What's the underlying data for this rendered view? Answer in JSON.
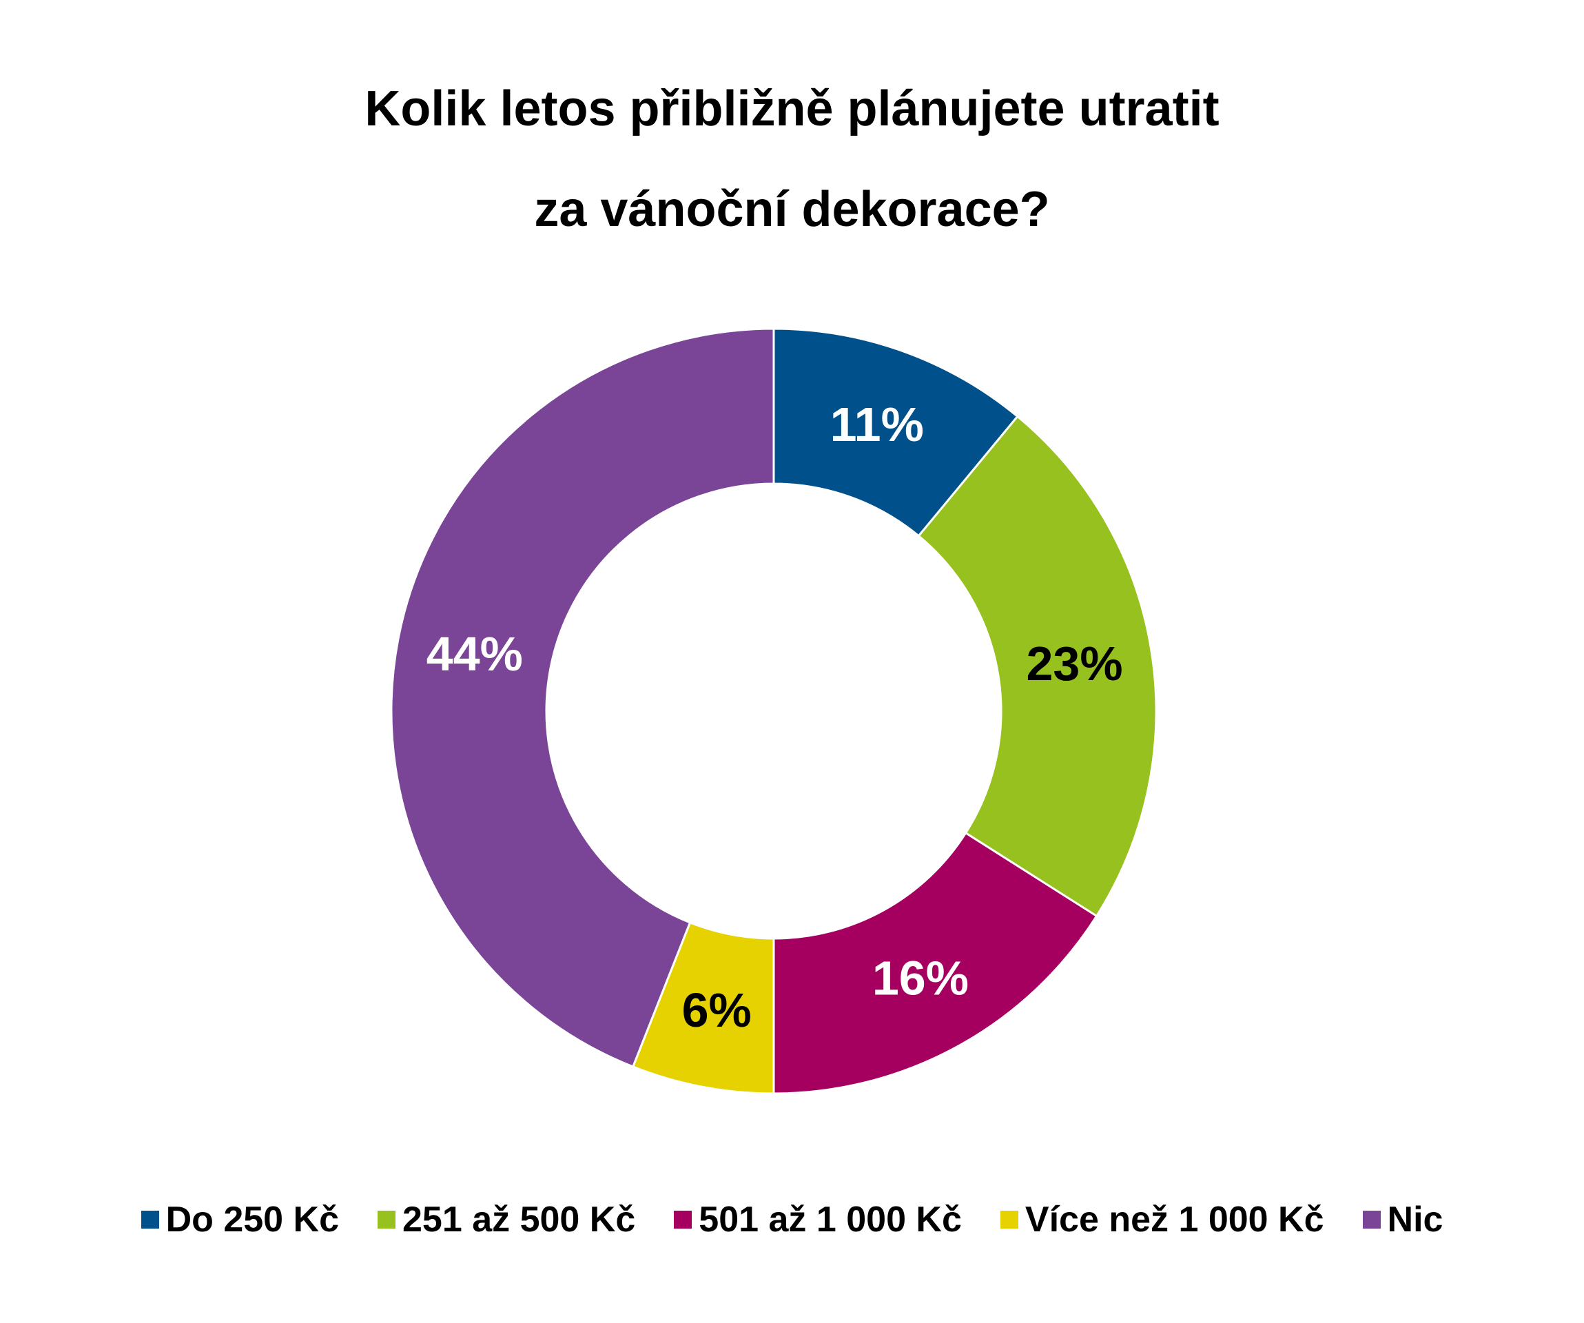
{
  "chart_data": {
    "type": "pie",
    "subtype": "donut",
    "title": [
      "Kolik letos přibližně plánujete utratit",
      "za vánoční dekorace?"
    ],
    "categories": [
      "Do 250 Kč",
      "251 až 500 Kč",
      "501 až 1 000 Kč",
      "Více než 1 000 Kč",
      "Nic"
    ],
    "values": [
      11,
      23,
      16,
      6,
      44
    ],
    "data_labels": [
      "11%",
      "23%",
      "16%",
      "6%",
      "44%"
    ],
    "colors": [
      "#00508C",
      "#97C11F",
      "#A5005F",
      "#E6D200",
      "#7A4497"
    ],
    "label_colors": [
      "#ffffff",
      "#000000",
      "#ffffff",
      "#000000",
      "#ffffff"
    ],
    "legend_position": "bottom",
    "start_angle": "12 o'clock, clockwise"
  }
}
